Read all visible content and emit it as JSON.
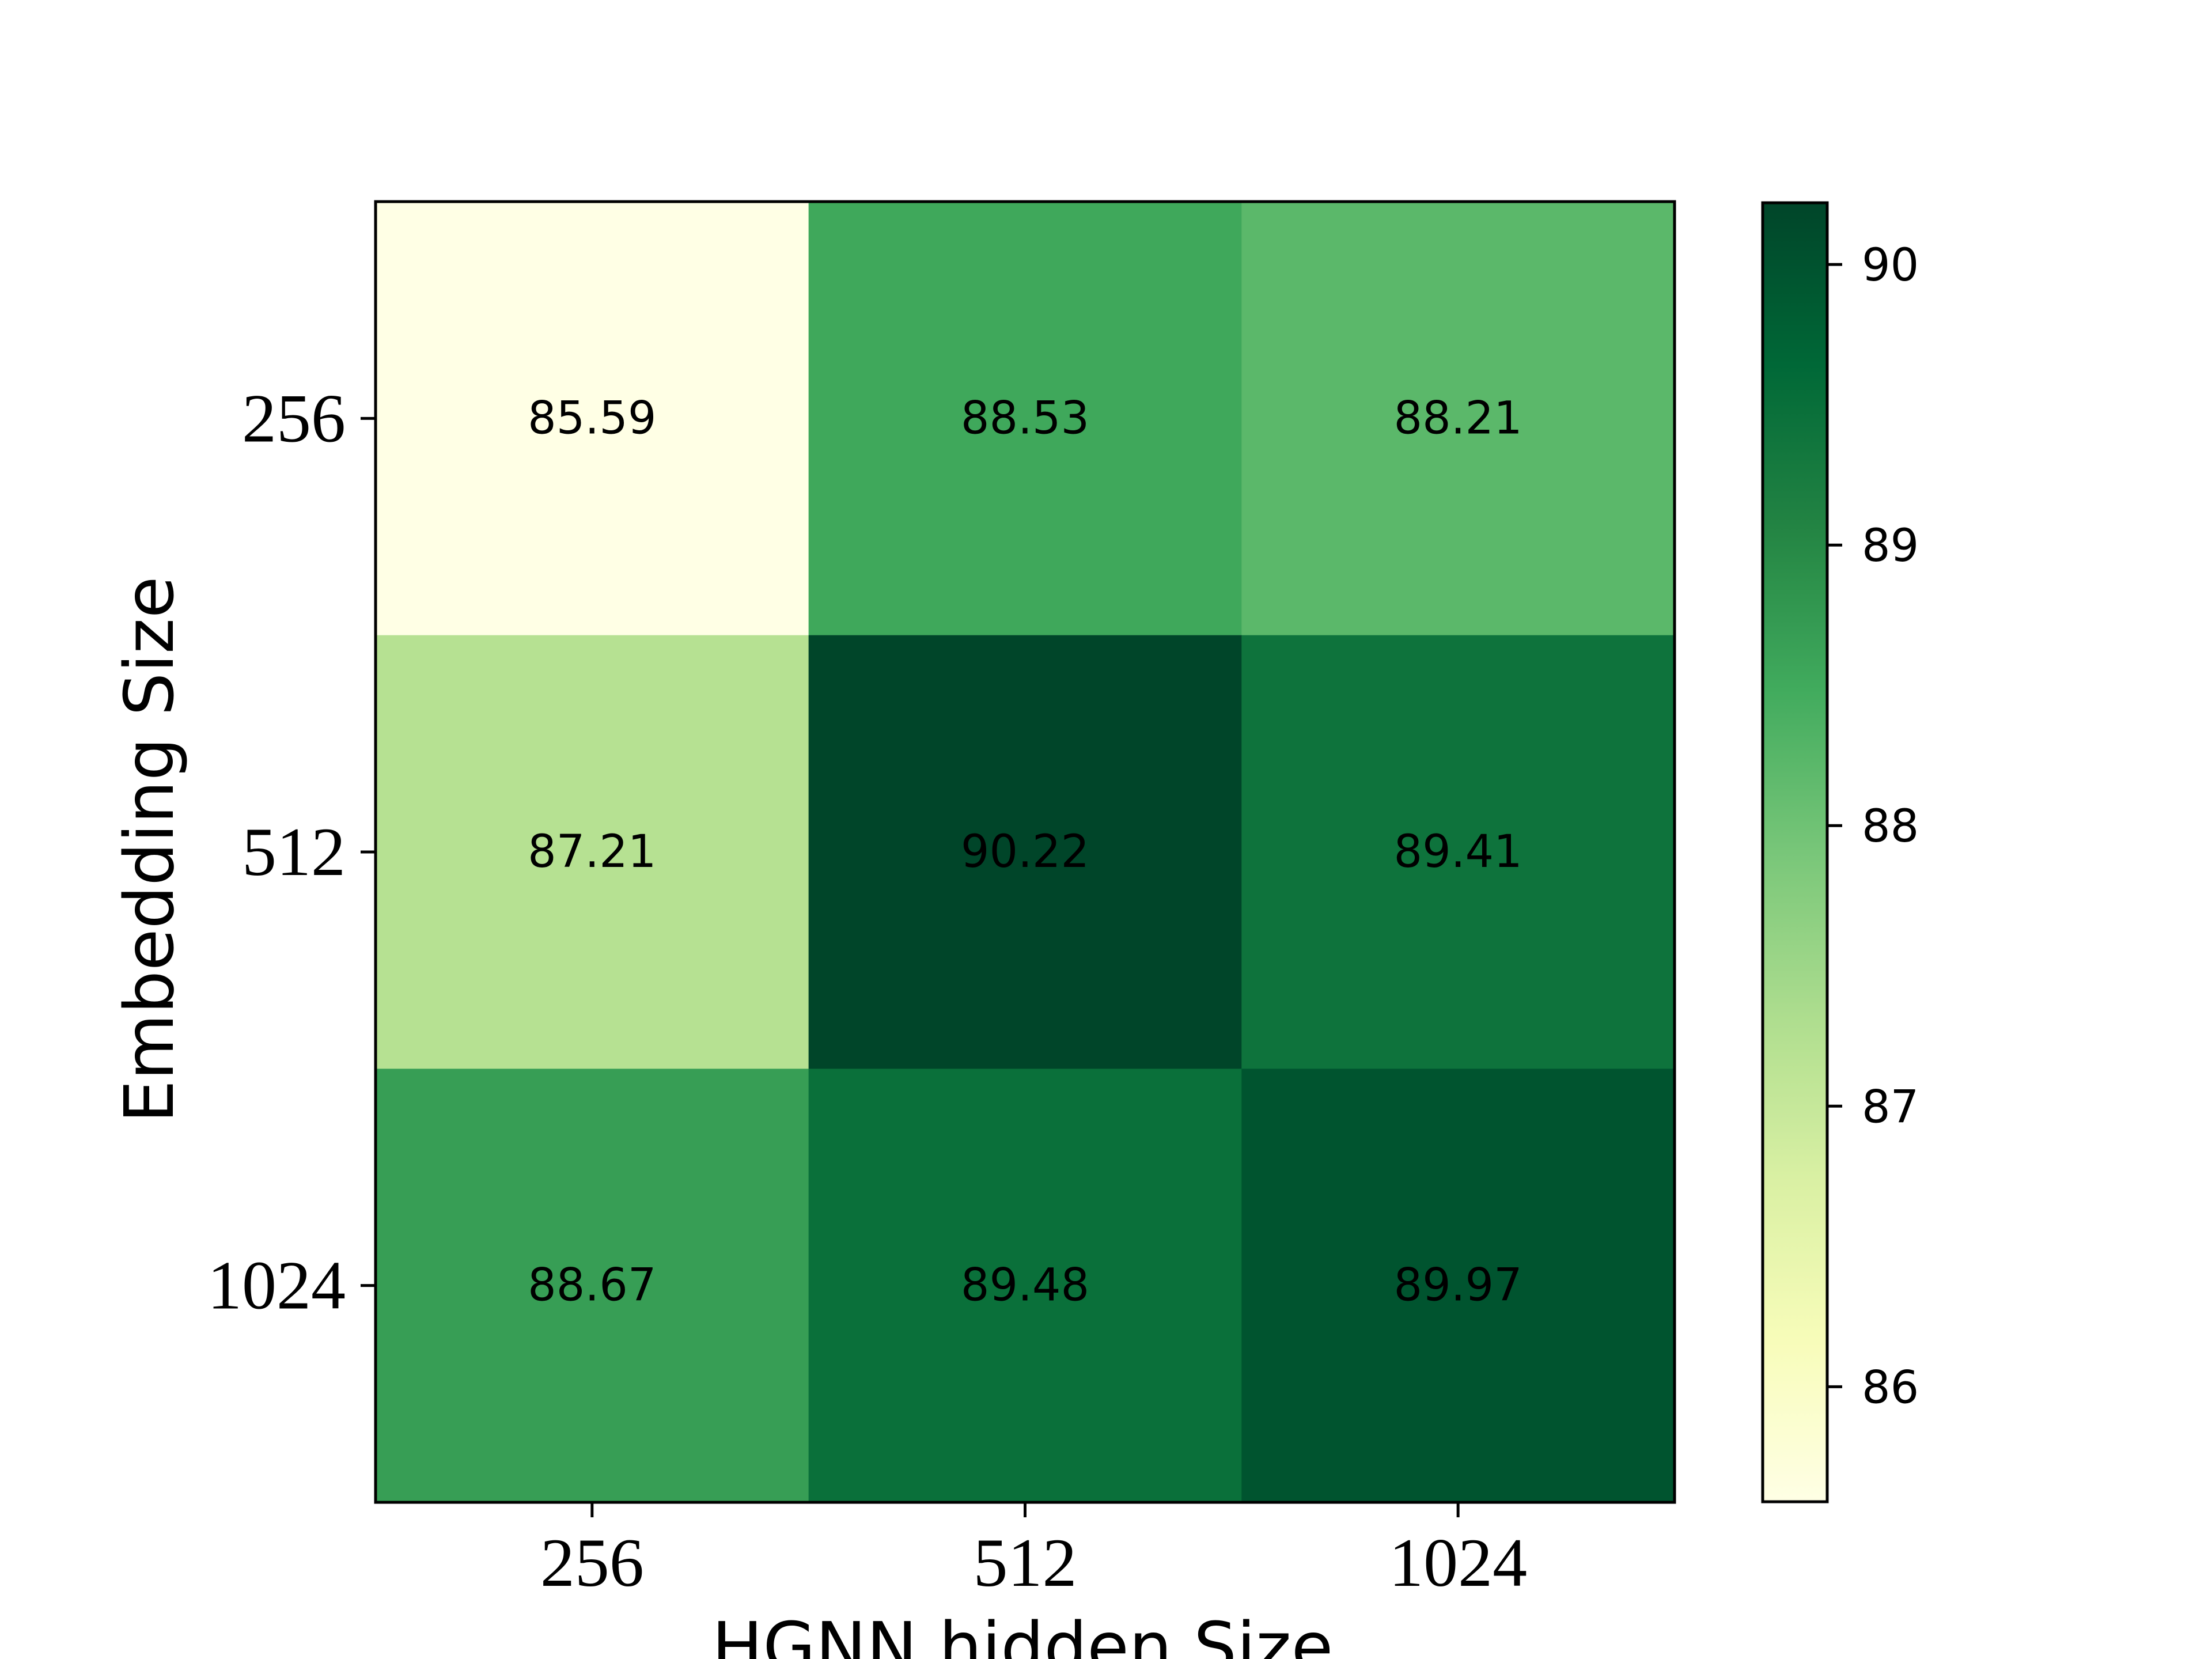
{
  "chart_data": {
    "type": "heatmap",
    "xlabel": "HGNN hidden Size",
    "ylabel": "Embedding Size",
    "x_categories": [
      "256",
      "512",
      "1024"
    ],
    "y_categories": [
      "256",
      "512",
      "1024"
    ],
    "values": [
      [
        85.59,
        88.53,
        88.21
      ],
      [
        87.21,
        90.22,
        89.41
      ],
      [
        88.67,
        89.48,
        89.97
      ]
    ],
    "value_labels": [
      [
        "85.59",
        "88.53",
        "88.21"
      ],
      [
        "87.21",
        "90.22",
        "89.41"
      ],
      [
        "88.67",
        "89.48",
        "89.97"
      ]
    ],
    "colormap": "Greens-like (YlGn)",
    "color_range": [
      85.59,
      90.22
    ],
    "colorbar": {
      "ticks": [
        86,
        87,
        88,
        89,
        90
      ],
      "tick_labels": [
        "86",
        "87",
        "88",
        "89",
        "90"
      ],
      "placement": "right"
    },
    "grid": false
  }
}
